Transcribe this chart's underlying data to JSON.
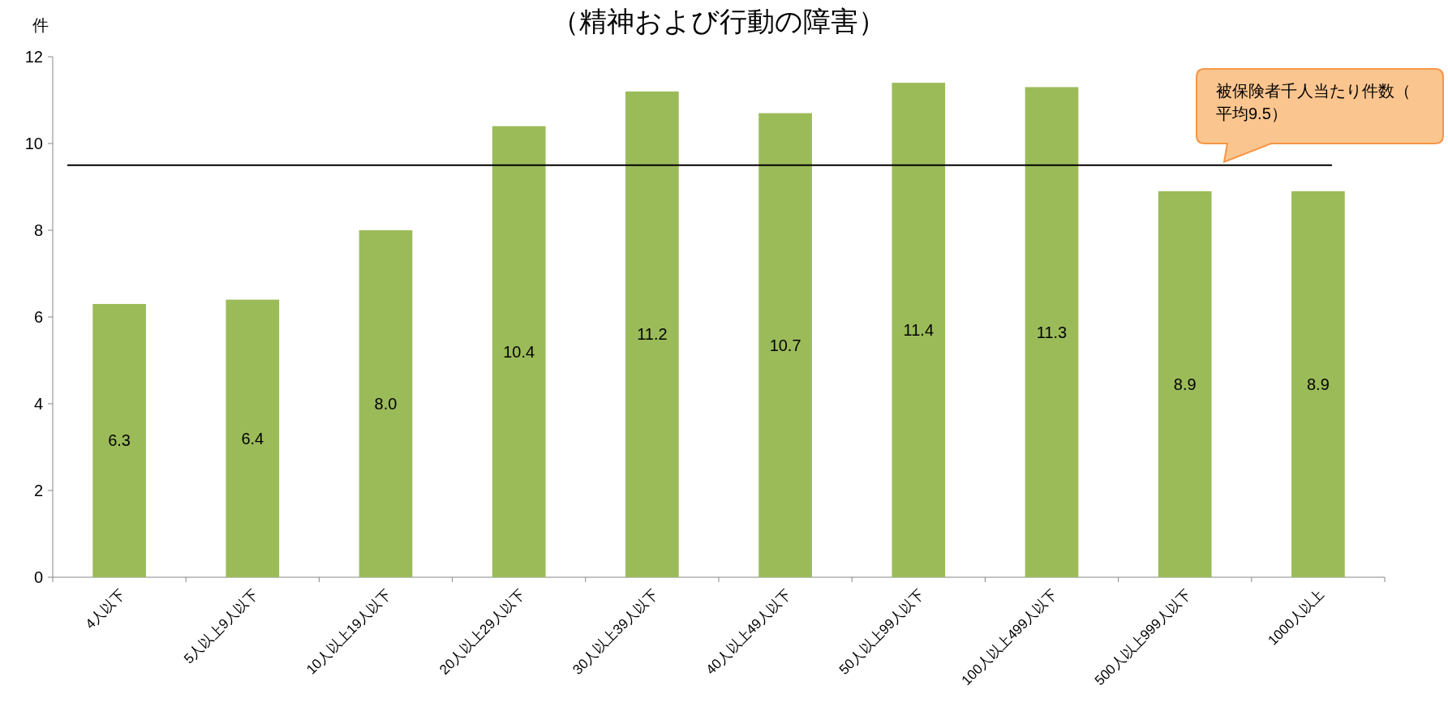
{
  "chart_data": {
    "type": "bar",
    "title": "（精神および行動の障害）",
    "ylabel": "件",
    "categories": [
      "4人以下",
      "5人以上9人以下",
      "10人以上19人以下",
      "20人以上29人以下",
      "30人以上39人以下",
      "40人以上49人以下",
      "50人以上99人以下",
      "100人以上499人以下",
      "500人以上999人以下",
      "1000人以上"
    ],
    "values": [
      6.3,
      6.4,
      8.0,
      10.4,
      11.2,
      10.7,
      11.4,
      11.3,
      8.9,
      8.9
    ],
    "value_labels": [
      "6.3",
      "6.4",
      "8.0",
      "10.4",
      "11.2",
      "10.7",
      "11.4",
      "11.3",
      "8.9",
      "8.9"
    ],
    "color": "#9bbb59",
    "ylim": [
      0,
      12
    ],
    "yticks": [
      0,
      2,
      4,
      6,
      8,
      10,
      12
    ],
    "grid": false,
    "ref_lines": [
      {
        "axis": "y",
        "value": 9.5,
        "label": "被保険者千人当たり件数（平均9.5）",
        "color": "#000000"
      }
    ]
  }
}
